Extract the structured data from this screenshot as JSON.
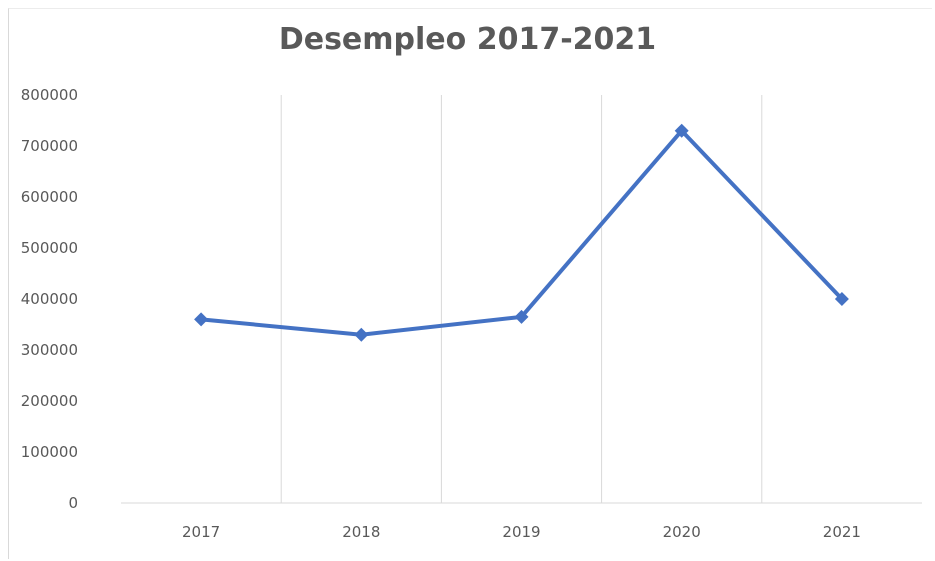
{
  "chart_data": {
    "type": "line",
    "title": "Desempleo 2017-2021",
    "xlabel": "",
    "ylabel": "",
    "categories": [
      "2017",
      "2018",
      "2019",
      "2020",
      "2021"
    ],
    "series": [
      {
        "values": [
          360000,
          330000,
          365000,
          730000,
          400000
        ],
        "color": "#4472c4",
        "marker": "diamond"
      }
    ],
    "ylim": [
      0,
      800000
    ],
    "yticks": [
      "0",
      "100000",
      "200000",
      "300000",
      "400000",
      "500000",
      "600000",
      "700000",
      "800000"
    ],
    "grid": "vertical",
    "legend": "none"
  }
}
